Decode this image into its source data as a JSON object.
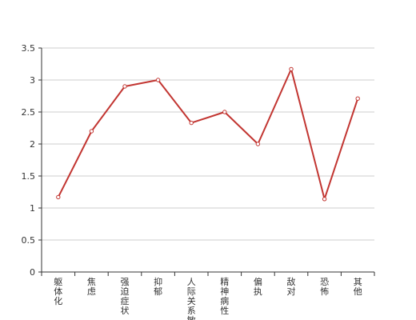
{
  "chart_data": {
    "type": "line",
    "categories": [
      "躯体化",
      "焦虑",
      "强迫症状",
      "抑郁",
      "人际关系敏感",
      "精神病性",
      "偏执",
      "敌对",
      "恐怖",
      "其他"
    ],
    "series": [
      {
        "values": [
          1.17,
          2.2,
          2.9,
          3.0,
          2.33,
          2.5,
          2.0,
          3.17,
          1.14,
          2.71
        ]
      }
    ],
    "ylim": [
      0,
      3.5
    ],
    "yticks": [
      "0",
      "0.5",
      "1",
      "1.5",
      "2",
      "2.5",
      "3",
      "3.5"
    ],
    "grid": true,
    "colors": {
      "line": "#c23531",
      "grid": "#cccccc",
      "axis": "#333333"
    }
  }
}
